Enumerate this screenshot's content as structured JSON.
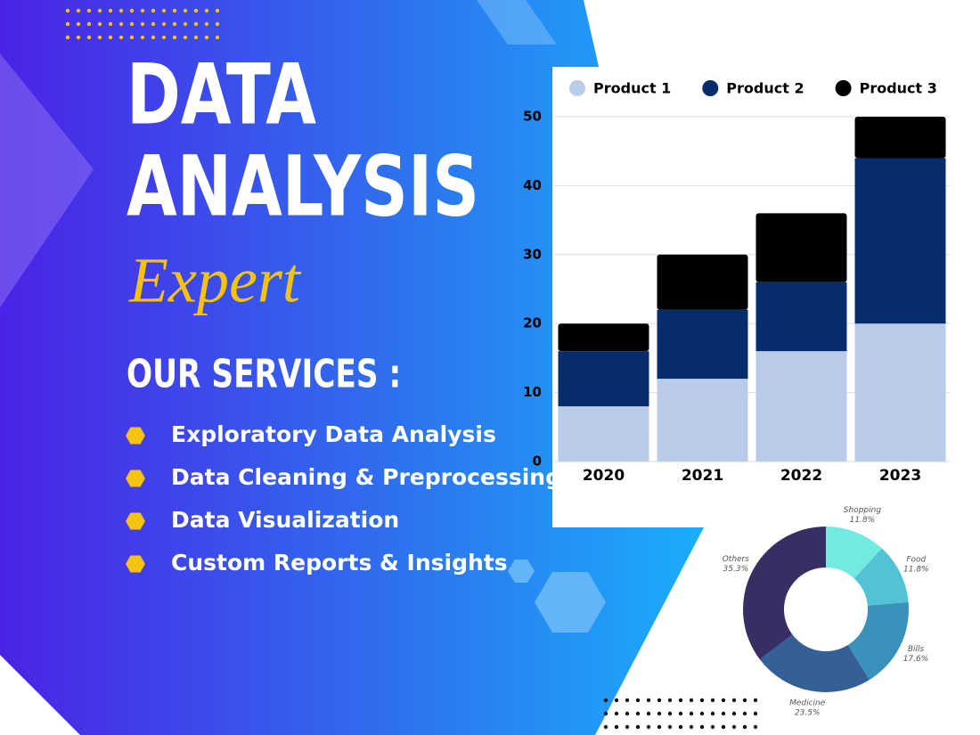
{
  "header": {
    "title_line1": "DATA",
    "title_line2": "ANALYSIS",
    "subtitle": "Expert"
  },
  "services": {
    "heading": "OUR SERVICES :",
    "items": [
      "Exploratory Data Analysis",
      "Data Cleaning & Preprocessing",
      "Data Visualization",
      "Custom Reports & Insights"
    ]
  },
  "chart_data": [
    {
      "type": "bar",
      "stacked": true,
      "categories": [
        "2020",
        "2021",
        "2022",
        "2023"
      ],
      "series": [
        {
          "name": "Product 1",
          "color": "#b9cbe8",
          "values": [
            8,
            12,
            16,
            20
          ]
        },
        {
          "name": "Product 2",
          "color": "#062c6b",
          "values": [
            8,
            10,
            10,
            24
          ]
        },
        {
          "name": "Product 3",
          "color": "#000000",
          "values": [
            4,
            8,
            10,
            6
          ]
        }
      ],
      "ylim": [
        0,
        50
      ],
      "yticks": [
        0,
        10,
        20,
        30,
        40,
        50
      ],
      "grid": true,
      "legend": "top"
    },
    {
      "type": "pie",
      "donut": true,
      "categories": [
        "Shopping",
        "Food",
        "Bills",
        "Medicine",
        "Others"
      ],
      "values": [
        11.8,
        11.8,
        17.6,
        23.5,
        35.3
      ],
      "value_labels": [
        "11.8%",
        "11.8%",
        "17.6%",
        "23.5%",
        "35.3%"
      ],
      "colors": [
        "#72eadf",
        "#52c3d5",
        "#3a91bb",
        "#345f97",
        "#352f63"
      ]
    }
  ]
}
